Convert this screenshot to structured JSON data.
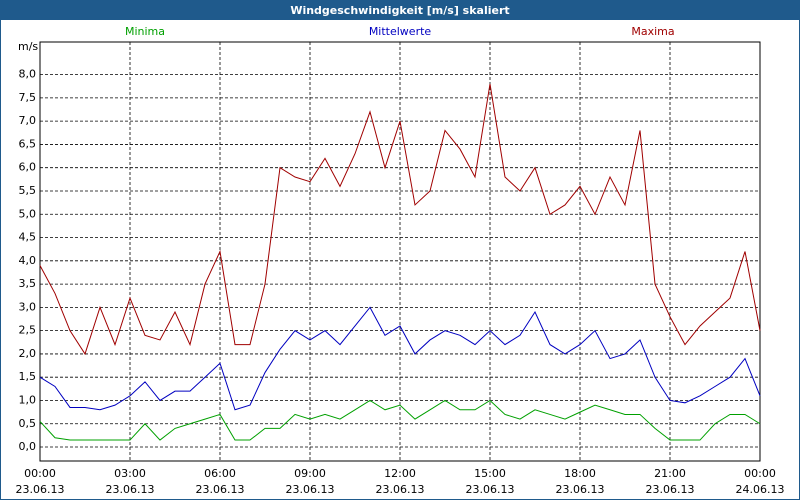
{
  "chart_data": {
    "type": "line",
    "title": "Windgeschwindigkeit [m/s] skaliert",
    "y_label": "m/s",
    "x": [
      0,
      0.5,
      1,
      1.5,
      2,
      2.5,
      3,
      3.5,
      4,
      4.5,
      5,
      5.5,
      6,
      6.5,
      7,
      7.5,
      8,
      8.5,
      9,
      9.5,
      10,
      10.5,
      11,
      11.5,
      12,
      12.5,
      13,
      13.5,
      14,
      14.5,
      15,
      15.5,
      16,
      16.5,
      17,
      17.5,
      18,
      18.5,
      19,
      19.5,
      20,
      20.5,
      21,
      21.5,
      22,
      22.5,
      23,
      23.5,
      24
    ],
    "series": [
      {
        "name": "Minima",
        "color": "#00a000",
        "values": [
          0.55,
          0.2,
          0.15,
          0.15,
          0.15,
          0.15,
          0.15,
          0.5,
          0.15,
          0.4,
          0.5,
          0.6,
          0.7,
          0.15,
          0.15,
          0.4,
          0.4,
          0.7,
          0.6,
          0.7,
          0.6,
          0.8,
          1.0,
          0.8,
          0.9,
          0.6,
          0.8,
          1.0,
          0.8,
          0.8,
          1.0,
          0.7,
          0.6,
          0.8,
          0.7,
          0.6,
          0.75,
          0.9,
          0.8,
          0.7,
          0.7,
          0.4,
          0.15,
          0.15,
          0.15,
          0.5,
          0.7,
          0.7,
          0.5
        ]
      },
      {
        "name": "Mittelwerte",
        "color": "#0000c0",
        "values": [
          1.5,
          1.3,
          0.85,
          0.85,
          0.8,
          0.9,
          1.1,
          1.4,
          1.0,
          1.2,
          1.2,
          1.5,
          1.8,
          0.8,
          0.9,
          1.6,
          2.1,
          2.5,
          2.3,
          2.5,
          2.2,
          2.6,
          3.0,
          2.4,
          2.6,
          2.0,
          2.3,
          2.5,
          2.4,
          2.2,
          2.5,
          2.2,
          2.4,
          2.9,
          2.2,
          2.0,
          2.2,
          2.5,
          1.9,
          2.0,
          2.3,
          1.5,
          1.0,
          0.95,
          1.1,
          1.3,
          1.5,
          1.9,
          1.1
        ]
      },
      {
        "name": "Maxima",
        "color": "#a00000",
        "values": [
          3.9,
          3.3,
          2.5,
          2.0,
          3.0,
          2.2,
          3.2,
          2.4,
          2.3,
          2.9,
          2.2,
          3.5,
          4.2,
          2.2,
          2.2,
          3.5,
          6.0,
          5.8,
          5.7,
          6.2,
          5.6,
          6.3,
          7.2,
          6.0,
          7.0,
          5.2,
          5.5,
          6.8,
          6.4,
          5.8,
          7.8,
          5.8,
          5.5,
          6.0,
          5.0,
          5.2,
          5.6,
          5.0,
          5.8,
          5.2,
          6.8,
          3.5,
          2.8,
          2.2,
          2.6,
          2.9,
          3.2,
          4.2,
          2.5
        ]
      }
    ],
    "xlim": [
      0,
      24
    ],
    "xticks": [
      {
        "value": 0,
        "label": "00:00"
      },
      {
        "value": 3,
        "label": "03:00"
      },
      {
        "value": 6,
        "label": "06:00"
      },
      {
        "value": 9,
        "label": "09:00"
      },
      {
        "value": 12,
        "label": "12:00"
      },
      {
        "value": 15,
        "label": "15:00"
      },
      {
        "value": 18,
        "label": "18:00"
      },
      {
        "value": 21,
        "label": "21:00"
      },
      {
        "value": 24,
        "label": "00:00"
      }
    ],
    "xtick_dates": [
      "23.06.13",
      "23.06.13",
      "23.06.13",
      "23.06.13",
      "23.06.13",
      "23.06.13",
      "23.06.13",
      "23.06.13",
      "24.06.13"
    ],
    "ylim": [
      -0.3,
      8.7
    ],
    "yticks": [
      {
        "value": 0,
        "label": "0,0"
      },
      {
        "value": 0.5,
        "label": "0,5"
      },
      {
        "value": 1,
        "label": "1,0"
      },
      {
        "value": 1.5,
        "label": "1,5"
      },
      {
        "value": 2,
        "label": "2,0"
      },
      {
        "value": 2.5,
        "label": "2,5"
      },
      {
        "value": 3,
        "label": "3,0"
      },
      {
        "value": 3.5,
        "label": "3,5"
      },
      {
        "value": 4,
        "label": "4,0"
      },
      {
        "value": 4.5,
        "label": "4,5"
      },
      {
        "value": 5,
        "label": "5,0"
      },
      {
        "value": 5.5,
        "label": "5,5"
      },
      {
        "value": 6,
        "label": "6,0"
      },
      {
        "value": 6.5,
        "label": "6,5"
      },
      {
        "value": 7,
        "label": "7,0"
      },
      {
        "value": 7.5,
        "label": "7,5"
      },
      {
        "value": 8,
        "label": "8,0"
      }
    ],
    "grid": true
  }
}
